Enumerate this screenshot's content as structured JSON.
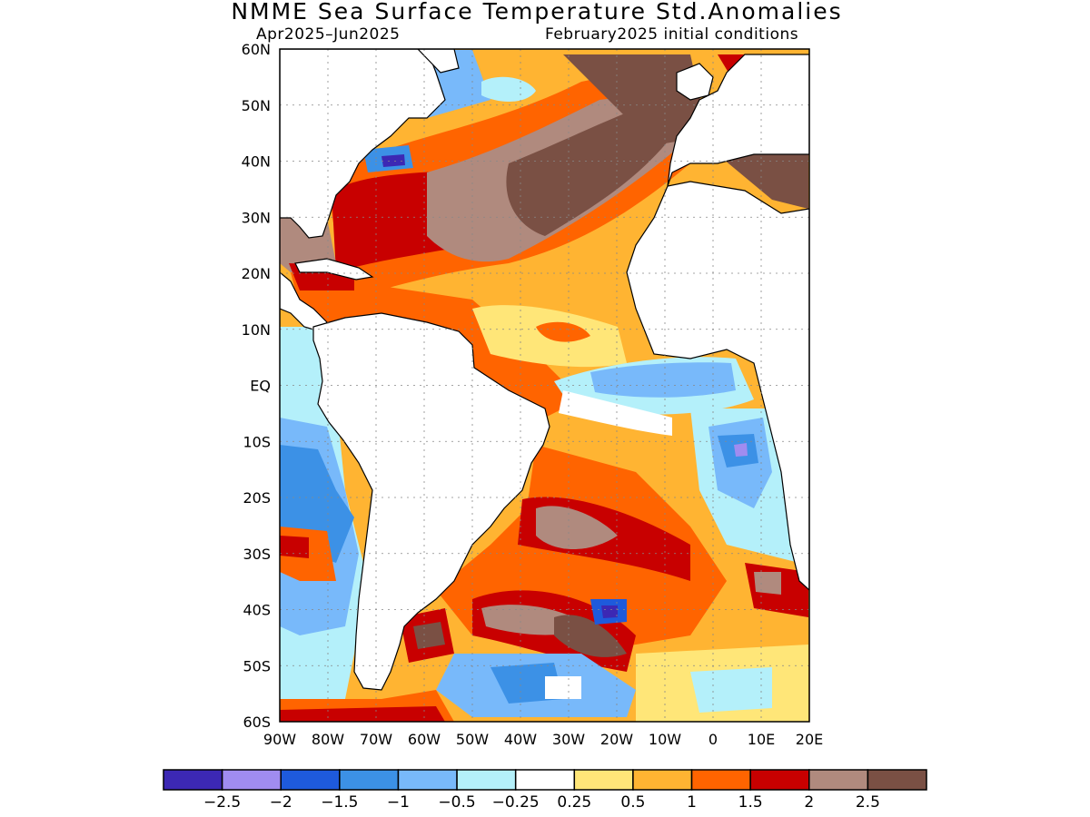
{
  "title": "NMME Sea Surface Temperature Std.Anomalies",
  "period": "Apr2025–Jun2025",
  "initial_conditions": "February2025 initial conditions",
  "map": {
    "lat_range": [
      -60,
      60
    ],
    "lon_range": [
      -90,
      20
    ],
    "grid": "dotted",
    "lat_labels": [
      {
        "lat": 60,
        "text": "60N"
      },
      {
        "lat": 50,
        "text": "50N"
      },
      {
        "lat": 40,
        "text": "40N"
      },
      {
        "lat": 30,
        "text": "30N"
      },
      {
        "lat": 20,
        "text": "20N"
      },
      {
        "lat": 10,
        "text": "10N"
      },
      {
        "lat": 0,
        "text": "EQ"
      },
      {
        "lat": -10,
        "text": "10S"
      },
      {
        "lat": -20,
        "text": "20S"
      },
      {
        "lat": -30,
        "text": "30S"
      },
      {
        "lat": -40,
        "text": "40S"
      },
      {
        "lat": -50,
        "text": "50S"
      },
      {
        "lat": -60,
        "text": "60S"
      }
    ],
    "lon_labels": [
      {
        "lon": -90,
        "text": "90W"
      },
      {
        "lon": -80,
        "text": "80W"
      },
      {
        "lon": -70,
        "text": "70W"
      },
      {
        "lon": -60,
        "text": "60W"
      },
      {
        "lon": -50,
        "text": "50W"
      },
      {
        "lon": -40,
        "text": "40W"
      },
      {
        "lon": -30,
        "text": "30W"
      },
      {
        "lon": -20,
        "text": "20W"
      },
      {
        "lon": -10,
        "text": "10W"
      },
      {
        "lon": 0,
        "text": "0"
      },
      {
        "lon": 10,
        "text": "10E"
      },
      {
        "lon": 20,
        "text": "20E"
      }
    ]
  },
  "colorbar": {
    "colors": [
      "#3c28b4",
      "#a08cf0",
      "#1e5adc",
      "#3c91e6",
      "#78b9fa",
      "#b4f0fa",
      "#ffffff",
      "#ffe678",
      "#ffb432",
      "#ff6400",
      "#c80000",
      "#b08a7e",
      "#7a5044"
    ],
    "labels": [
      "−2.5",
      "−2",
      "−1.5",
      "−1",
      "−0.5",
      "−0.25",
      "0.25",
      "0.5",
      "1",
      "1.5",
      "2",
      "2.5"
    ]
  },
  "land_color": "#ffffff",
  "coast_color": "#000000"
}
